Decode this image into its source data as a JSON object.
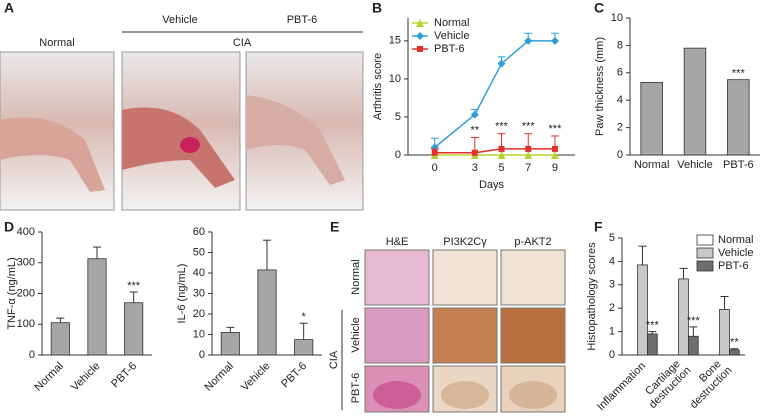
{
  "figure": {
    "panel_letters": [
      "A",
      "B",
      "C",
      "D",
      "E",
      "F"
    ]
  },
  "panel_a": {
    "normal": "Normal",
    "vehicle": "Vehicle",
    "pbt6": "PBT-6",
    "cia": "CIA"
  },
  "panel_e": {
    "columns": [
      "H&E",
      "PI3K2Cγ",
      "p-AKT2"
    ],
    "rows": [
      "Normal",
      "Vehicle",
      "PBT-6"
    ],
    "group": "CIA"
  },
  "chart_data": [
    {
      "type": "line",
      "ylabel": "Arthritis score",
      "xlabel": "Days",
      "x": [
        0,
        3,
        5,
        7,
        9
      ],
      "xlim": [
        -2,
        10.5
      ],
      "xticks": [
        0,
        3,
        5,
        7,
        9
      ],
      "ylim": [
        0,
        18
      ],
      "yticks": [
        0,
        5,
        10,
        15
      ],
      "legend": "upper left",
      "series": [
        {
          "name": "Normal",
          "color": "#b5d334",
          "marker": "triangle",
          "values": [
            0,
            0,
            0,
            0,
            0
          ]
        },
        {
          "name": "Vehicle",
          "color": "#2e9fd8",
          "marker": "diamond",
          "values": [
            1,
            5.3,
            12,
            15,
            15
          ],
          "errors": [
            1.2,
            0.7,
            0.9,
            1,
            1
          ]
        },
        {
          "name": "PBT-6",
          "color": "#e0312b",
          "marker": "square",
          "values": [
            0.3,
            0.3,
            0.8,
            0.8,
            0.8
          ],
          "errors": [
            0.5,
            2,
            2,
            2,
            1.7
          ],
          "annotations": [
            null,
            "**",
            "***",
            "***",
            "***"
          ]
        }
      ]
    },
    {
      "type": "bar",
      "ylabel": "Paw thickness (mm)",
      "categories": [
        "Normal",
        "Vehicle",
        "PBT-6"
      ],
      "values": [
        5.3,
        7.8,
        5.5
      ],
      "annotations": [
        null,
        null,
        "***"
      ],
      "color": "#a6a6a6",
      "ylim": [
        0,
        10
      ],
      "yticks": [
        0,
        2,
        4,
        6,
        8,
        10
      ],
      "x_tick_rotation": 0
    },
    {
      "type": "bar",
      "ylabel": "TNF-α (ng/mL)",
      "categories": [
        "Normal",
        "Vehicle",
        "PBT-6"
      ],
      "values": [
        105,
        313,
        170
      ],
      "errors": [
        15,
        38,
        35
      ],
      "annotations": [
        null,
        null,
        "***"
      ],
      "color": "#a6a6a6",
      "ylim": [
        0,
        400
      ],
      "yticks": [
        0,
        100,
        200,
        300,
        400
      ],
      "x_tick_rotation": -45
    },
    {
      "type": "bar",
      "ylabel": "IL-6 (ng/mL)",
      "categories": [
        "Normal",
        "Vehicle",
        "PBT-6"
      ],
      "values": [
        11,
        41.5,
        7.5
      ],
      "errors": [
        2.5,
        14.5,
        8
      ],
      "annotations": [
        null,
        null,
        "*"
      ],
      "color": "#a6a6a6",
      "ylim": [
        0,
        60
      ],
      "yticks": [
        0,
        10,
        20,
        30,
        40,
        50,
        60
      ],
      "x_tick_rotation": -45
    },
    {
      "type": "bar",
      "ylabel": "Histopathology scores",
      "categories": [
        "Inflammation",
        "Cartilage destruction",
        "Bone destruction"
      ],
      "ylim": [
        0,
        5
      ],
      "yticks": [
        0,
        1,
        2,
        3,
        4,
        5
      ],
      "x_tick_rotation": -45,
      "legend": "upper right",
      "series": [
        {
          "name": "Normal",
          "color": "#ffffff",
          "values": [
            0,
            0,
            0
          ]
        },
        {
          "name": "Vehicle",
          "color": "#c8c8c8",
          "values": [
            3.85,
            3.25,
            1.95
          ],
          "errors": [
            0.8,
            0.45,
            0.55
          ]
        },
        {
          "name": "PBT-6",
          "color": "#6e6e6e",
          "values": [
            0.9,
            0.8,
            0.22
          ],
          "errors": [
            0.1,
            0.4,
            0.05
          ],
          "annotations": [
            "***",
            "***",
            "**"
          ]
        }
      ]
    }
  ]
}
